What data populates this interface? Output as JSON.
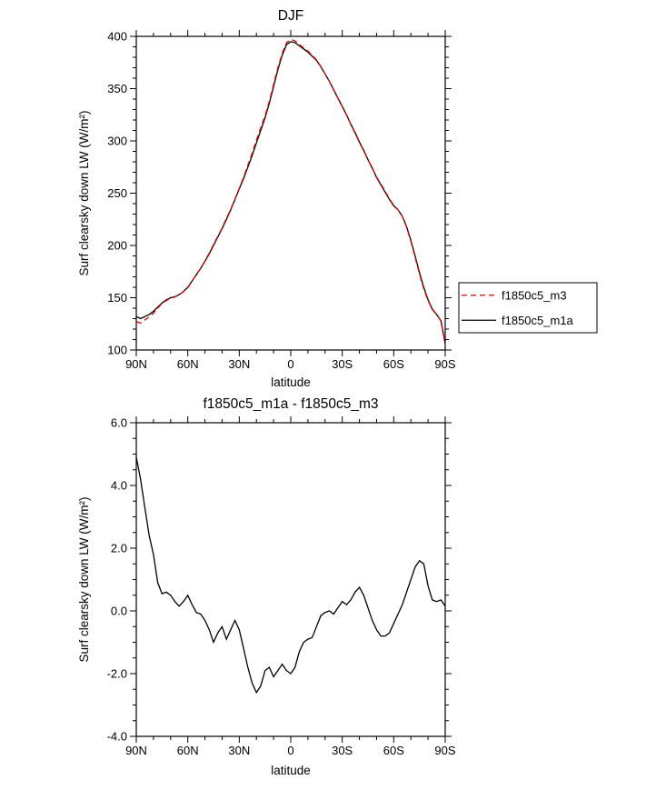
{
  "page": {
    "background": "#ffffff",
    "text_color": "#000000"
  },
  "chart_data": [
    {
      "id": "djf",
      "type": "line",
      "title": "DJF",
      "xlabel": "latitude",
      "ylabel": "Surf clearsky down LW (W/m²)",
      "xlim": [
        90,
        -90
      ],
      "ylim": [
        100,
        400
      ],
      "xtick_values": [
        90,
        60,
        30,
        0,
        -30,
        -60,
        -90
      ],
      "xtick_labels": [
        "90N",
        "60N",
        "30N",
        "0",
        "30S",
        "60S",
        "90S"
      ],
      "xtick_minor": 10,
      "ytick_values": [
        100,
        150,
        200,
        250,
        300,
        350,
        400
      ],
      "ytick_labels": [
        "100",
        "150",
        "200",
        "250",
        "300",
        "350",
        "400"
      ],
      "ytick_minor": 10,
      "grid": false,
      "legend": {
        "position": "outside-right",
        "entries": [
          {
            "label": "f1850c5_m3",
            "color": "#e00000",
            "dash": "6,4"
          },
          {
            "label": "f1850c5_m1a",
            "color": "#000000",
            "dash": ""
          }
        ]
      },
      "x": [
        90,
        87.5,
        85,
        82.5,
        80,
        77.5,
        75,
        72.5,
        70,
        67.5,
        65,
        62.5,
        60,
        57.5,
        55,
        52.5,
        50,
        47.5,
        45,
        42.5,
        40,
        37.5,
        35,
        32.5,
        30,
        27.5,
        25,
        22.5,
        20,
        17.5,
        15,
        12.5,
        10,
        7.5,
        5,
        2.5,
        0,
        -2.5,
        -5,
        -7.5,
        -10,
        -12.5,
        -15,
        -17.5,
        -20,
        -22.5,
        -25,
        -27.5,
        -30,
        -32.5,
        -35,
        -37.5,
        -40,
        -42.5,
        -45,
        -47.5,
        -50,
        -52.5,
        -55,
        -57.5,
        -60,
        -62.5,
        -65,
        -67.5,
        -70,
        -72.5,
        -75,
        -77.5,
        -80,
        -82.5,
        -85,
        -87.5,
        -90
      ],
      "series": [
        {
          "name": "f1850c5_m1a",
          "color": "#000000",
          "dash": "",
          "values": [
            132,
            130,
            132,
            134,
            137,
            141,
            145,
            148,
            150,
            151,
            153,
            156,
            160,
            166,
            172,
            178,
            185,
            192,
            200,
            208,
            216,
            225,
            234,
            244,
            254,
            264,
            275,
            286,
            298,
            310,
            322,
            336,
            352,
            368,
            382,
            392,
            395,
            394,
            391,
            388,
            385,
            381,
            377,
            371,
            364,
            357,
            349,
            341,
            333,
            325,
            316,
            308,
            299,
            291,
            282,
            274,
            265,
            258,
            251,
            244,
            238,
            234,
            228,
            218,
            205,
            190,
            174,
            160,
            148,
            139,
            134,
            128,
            106
          ]
        },
        {
          "name": "f1850c5_m3",
          "color": "#e00000",
          "dash": "6,4",
          "values": [
            127.1,
            125.8,
            128.7,
            131.6,
            135.2,
            140.1,
            144.5,
            147.4,
            149.5,
            150.7,
            152.9,
            155.7,
            159.5,
            165.8,
            172.1,
            178.1,
            185.3,
            192.6,
            201,
            208.7,
            216.5,
            225.9,
            234.6,
            244.3,
            254.6,
            265.2,
            276.8,
            288.3,
            300.6,
            312.4,
            323.9,
            337.8,
            354.1,
            369.9,
            383.7,
            393.9,
            397,
            395.8,
            392.3,
            389,
            385.9,
            381.9,
            377.5,
            371.2,
            364.1,
            357,
            349.1,
            340.9,
            332.7,
            324.8,
            315.7,
            307.4,
            298.3,
            290.5,
            281.9,
            274.3,
            265.6,
            258.8,
            251.8,
            244.7,
            238.4,
            234.1,
            227.8,
            217.4,
            204,
            188.6,
            172.4,
            158.5,
            147.2,
            138.7,
            133.7,
            127.7,
            105.9
          ]
        }
      ]
    },
    {
      "id": "difference",
      "type": "line",
      "title": "f1850c5_m1a - f1850c5_m3",
      "xlabel": "latitude",
      "ylabel": "Surf clearsky down LW (W/m²)",
      "xlim": [
        90,
        -90
      ],
      "ylim": [
        -4.0,
        6.0
      ],
      "xtick_values": [
        90,
        60,
        30,
        0,
        -30,
        -60,
        -90
      ],
      "xtick_labels": [
        "90N",
        "60N",
        "30N",
        "0",
        "30S",
        "60S",
        "90S"
      ],
      "xtick_minor": 10,
      "ytick_values": [
        -4,
        -2,
        0,
        2,
        4,
        6
      ],
      "ytick_labels": [
        "-4.0",
        "-2.0",
        "0.0",
        "2.0",
        "4.0",
        "6.0"
      ],
      "ytick_minor": 0.5,
      "grid": false,
      "x": [
        90,
        87.5,
        85,
        82.5,
        80,
        77.5,
        75,
        72.5,
        70,
        67.5,
        65,
        62.5,
        60,
        57.5,
        55,
        52.5,
        50,
        47.5,
        45,
        42.5,
        40,
        37.5,
        35,
        32.5,
        30,
        27.5,
        25,
        22.5,
        20,
        17.5,
        15,
        12.5,
        10,
        7.5,
        5,
        2.5,
        0,
        -2.5,
        -5,
        -7.5,
        -10,
        -12.5,
        -15,
        -17.5,
        -20,
        -22.5,
        -25,
        -27.5,
        -30,
        -32.5,
        -35,
        -37.5,
        -40,
        -42.5,
        -45,
        -47.5,
        -50,
        -52.5,
        -55,
        -57.5,
        -60,
        -62.5,
        -65,
        -67.5,
        -70,
        -72.5,
        -75,
        -77.5,
        -80,
        -82.5,
        -85,
        -87.5,
        -90
      ],
      "series": [
        {
          "name": "f1850c5_m1a - f1850c5_m3",
          "color": "#000000",
          "dash": "",
          "values": [
            4.9,
            4.2,
            3.3,
            2.4,
            1.8,
            0.9,
            0.55,
            0.6,
            0.5,
            0.3,
            0.15,
            0.3,
            0.5,
            0.2,
            -0.05,
            -0.1,
            -0.3,
            -0.6,
            -1.0,
            -0.7,
            -0.5,
            -0.9,
            -0.6,
            -0.3,
            -0.6,
            -1.2,
            -1.8,
            -2.3,
            -2.6,
            -2.4,
            -1.9,
            -1.8,
            -2.1,
            -1.9,
            -1.7,
            -1.9,
            -2.0,
            -1.8,
            -1.3,
            -1.0,
            -0.9,
            -0.85,
            -0.5,
            -0.15,
            -0.05,
            0.0,
            -0.1,
            0.1,
            0.3,
            0.2,
            0.35,
            0.6,
            0.75,
            0.5,
            0.1,
            -0.3,
            -0.6,
            -0.8,
            -0.8,
            -0.7,
            -0.4,
            -0.1,
            0.2,
            0.6,
            1.0,
            1.4,
            1.6,
            1.5,
            0.8,
            0.35,
            0.3,
            0.35,
            0.15
          ]
        }
      ]
    }
  ]
}
